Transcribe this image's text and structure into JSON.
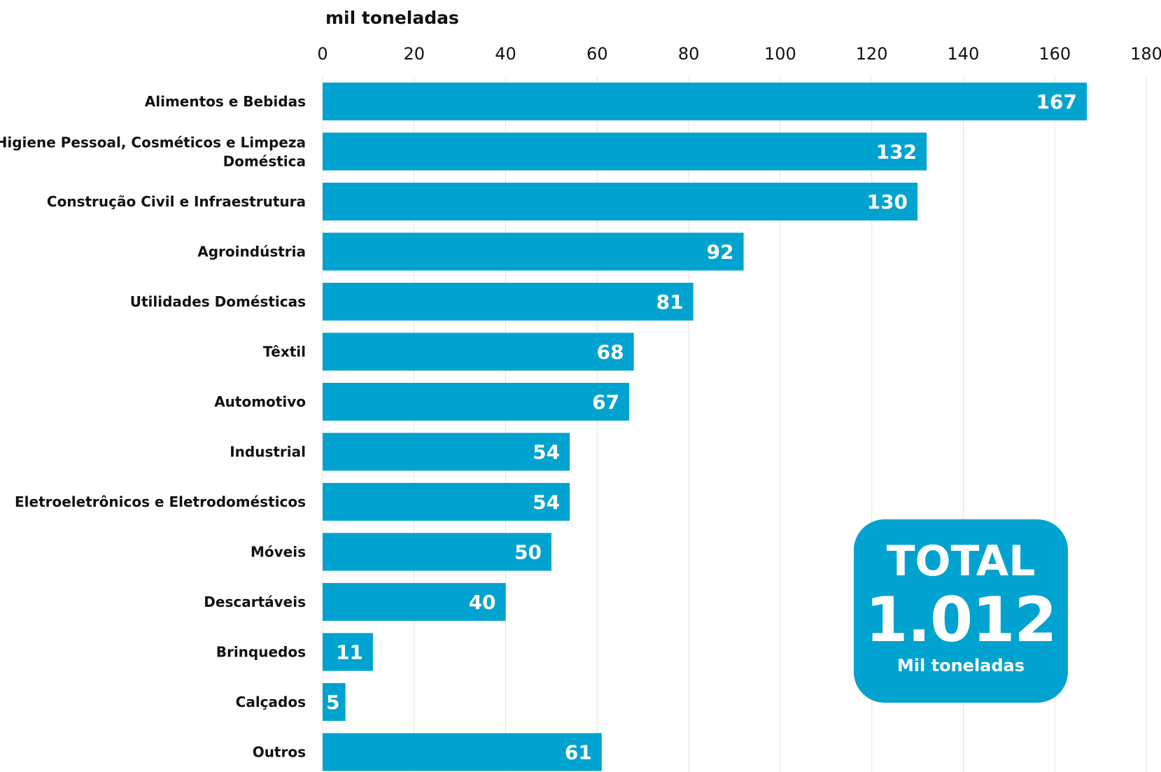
{
  "chart_data": {
    "type": "bar",
    "orientation": "horizontal",
    "unit_label": "mil toneladas",
    "categories": [
      "Alimentos e Bebidas",
      "Higiene Pessoal, Cosméticos e Limpeza Doméstica",
      "Construção Civil e Infraestrutura",
      "Agroindústria",
      "Utilidades Domésticas",
      "Têxtil",
      "Automotivo",
      "Industrial",
      "Eletroeletrônicos e Eletrodomésticos",
      "Móveis",
      "Descartáveis",
      "Brinquedos",
      "Calçados",
      "Outros"
    ],
    "values": [
      167,
      132,
      130,
      92,
      81,
      68,
      67,
      54,
      54,
      50,
      40,
      11,
      5,
      61
    ],
    "xlim": [
      0,
      180
    ],
    "ticks": [
      0,
      20,
      40,
      60,
      80,
      100,
      120,
      140,
      160,
      180
    ],
    "axis_position": "top",
    "grid": true,
    "bar_color": "#00a3cf"
  },
  "total": {
    "label": "TOTAL",
    "value": "1.012",
    "unit": "Mil toneladas",
    "color": "#00a3cf"
  }
}
